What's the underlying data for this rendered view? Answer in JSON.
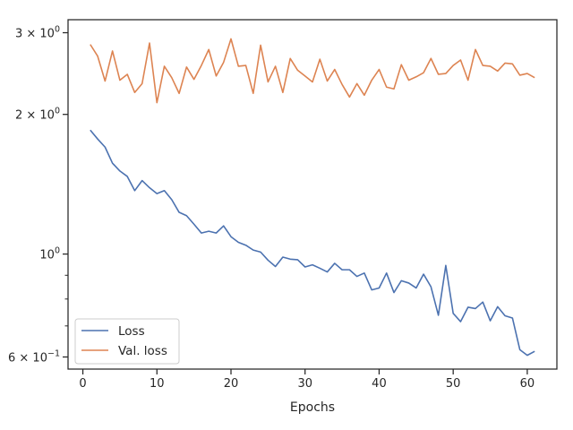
{
  "chart_data": {
    "type": "line",
    "xlabel": "Epochs",
    "ylabel": "",
    "xlim": [
      -2,
      64
    ],
    "ylim": [
      0.565,
      3.2
    ],
    "yscale": "log",
    "grid": false,
    "legend_position": "lower-left",
    "x_ticks": [
      0,
      10,
      20,
      30,
      40,
      50,
      60
    ],
    "x_tick_labels": [
      "0",
      "10",
      "20",
      "30",
      "40",
      "50",
      "60"
    ],
    "y_major_ticks": [
      {
        "value": 0.6,
        "label": "6 × 10",
        "exp": "−1"
      },
      {
        "value": 1.0,
        "label": "10",
        "exp": "0"
      },
      {
        "value": 2.0,
        "label": "2 × 10",
        "exp": "0"
      },
      {
        "value": 3.0,
        "label": "3 × 10",
        "exp": "0"
      }
    ],
    "y_minor_ticks": [
      0.7,
      0.8,
      0.9,
      4.0
    ],
    "series": [
      {
        "name": "Loss",
        "color": "#4c72b0",
        "x": [
          1,
          2,
          3,
          4,
          5,
          6,
          7,
          8,
          9,
          10,
          11,
          12,
          13,
          14,
          15,
          16,
          17,
          18,
          19,
          20,
          21,
          22,
          23,
          24,
          25,
          26,
          27,
          28,
          29,
          30,
          31,
          32,
          33,
          34,
          35,
          36,
          37,
          38,
          39,
          40,
          41,
          42,
          43,
          44,
          45,
          46,
          47,
          48,
          49,
          50,
          51,
          52,
          53,
          54,
          55,
          56,
          57,
          58,
          59,
          60,
          61
        ],
        "y": [
          1.85,
          1.77,
          1.7,
          1.57,
          1.51,
          1.47,
          1.37,
          1.44,
          1.39,
          1.35,
          1.37,
          1.31,
          1.23,
          1.21,
          1.16,
          1.11,
          1.12,
          1.11,
          1.15,
          1.09,
          1.06,
          1.045,
          1.02,
          1.01,
          0.97,
          0.94,
          0.985,
          0.975,
          0.972,
          0.938,
          0.948,
          0.932,
          0.915,
          0.955,
          0.925,
          0.925,
          0.895,
          0.91,
          0.837,
          0.845,
          0.91,
          0.826,
          0.876,
          0.866,
          0.845,
          0.905,
          0.85,
          0.738,
          0.945,
          0.745,
          0.715,
          0.768,
          0.763,
          0.788,
          0.718,
          0.77,
          0.736,
          0.728,
          0.622,
          0.605,
          0.617
        ]
      },
      {
        "name": "Val. loss",
        "color": "#dd8452",
        "x": [
          1,
          2,
          3,
          4,
          5,
          6,
          7,
          8,
          9,
          10,
          11,
          12,
          13,
          14,
          15,
          16,
          17,
          18,
          19,
          20,
          21,
          22,
          23,
          24,
          25,
          26,
          27,
          28,
          29,
          30,
          31,
          32,
          33,
          34,
          35,
          36,
          37,
          38,
          39,
          40,
          41,
          42,
          43,
          44,
          45,
          46,
          47,
          48,
          49,
          50,
          51,
          52,
          53,
          54,
          55,
          56,
          57,
          58,
          59,
          60,
          61
        ],
        "y": [
          2.83,
          2.67,
          2.36,
          2.74,
          2.37,
          2.44,
          2.23,
          2.33,
          2.85,
          2.12,
          2.54,
          2.4,
          2.22,
          2.53,
          2.38,
          2.55,
          2.76,
          2.42,
          2.59,
          2.91,
          2.54,
          2.55,
          2.22,
          2.82,
          2.35,
          2.54,
          2.23,
          2.64,
          2.49,
          2.42,
          2.35,
          2.63,
          2.36,
          2.5,
          2.32,
          2.18,
          2.33,
          2.2,
          2.37,
          2.5,
          2.29,
          2.27,
          2.56,
          2.37,
          2.41,
          2.46,
          2.64,
          2.44,
          2.45,
          2.55,
          2.62,
          2.37,
          2.76,
          2.55,
          2.54,
          2.48,
          2.58,
          2.57,
          2.43,
          2.45,
          2.4
        ]
      }
    ]
  }
}
